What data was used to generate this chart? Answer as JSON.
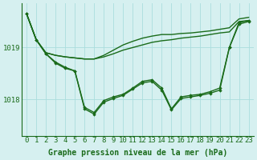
{
  "title": "Graphe pression niveau de la mer (hPa)",
  "xlabel_hours": [
    0,
    1,
    2,
    3,
    4,
    5,
    6,
    7,
    8,
    9,
    10,
    11,
    12,
    13,
    14,
    15,
    16,
    17,
    18,
    19,
    20,
    21,
    22,
    23
  ],
  "background_color": "#d6f0f0",
  "grid_color": "#aadddd",
  "line_color": "#1a6b1a",
  "ylim": [
    1017.3,
    1019.85
  ],
  "yticks": [
    1018,
    1019
  ],
  "lines": [
    {
      "values": [
        1019.65,
        1019.15,
        1018.9,
        1018.85,
        1018.82,
        1018.8,
        1018.78,
        1018.78,
        1018.82,
        1018.88,
        1018.95,
        1019.0,
        1019.05,
        1019.1,
        1019.13,
        1019.15,
        1019.18,
        1019.2,
        1019.22,
        1019.25,
        1019.28,
        1019.3,
        1019.5,
        1019.52
      ],
      "markers": false,
      "linewidth": 1.0
    },
    {
      "values": [
        1019.65,
        1019.15,
        1018.9,
        1018.85,
        1018.82,
        1018.8,
        1018.78,
        1018.78,
        1018.85,
        1018.95,
        1019.05,
        1019.12,
        1019.18,
        1019.22,
        1019.25,
        1019.25,
        1019.27,
        1019.28,
        1019.3,
        1019.32,
        1019.35,
        1019.38,
        1019.55,
        1019.58
      ],
      "markers": false,
      "linewidth": 1.0
    },
    {
      "values": [
        1019.65,
        1019.15,
        1018.88,
        1018.7,
        1018.6,
        1018.55,
        1017.85,
        1017.75,
        1017.98,
        1018.05,
        1018.1,
        1018.22,
        1018.35,
        1018.38,
        1018.22,
        1017.82,
        1018.05,
        1018.08,
        1018.1,
        1018.15,
        1018.22,
        1019.0,
        1019.48,
        1019.52
      ],
      "markers": true,
      "linewidth": 1.0
    },
    {
      "values": [
        1019.65,
        1019.15,
        1018.88,
        1018.72,
        1018.62,
        1018.55,
        1017.82,
        1017.72,
        1017.95,
        1018.02,
        1018.08,
        1018.2,
        1018.32,
        1018.35,
        1018.18,
        1017.8,
        1018.02,
        1018.05,
        1018.08,
        1018.12,
        1018.18,
        1019.0,
        1019.45,
        1019.5
      ],
      "markers": true,
      "linewidth": 1.0
    }
  ],
  "font_color": "#1a6b1a",
  "font_size_label": 7,
  "font_size_tick": 6.5
}
